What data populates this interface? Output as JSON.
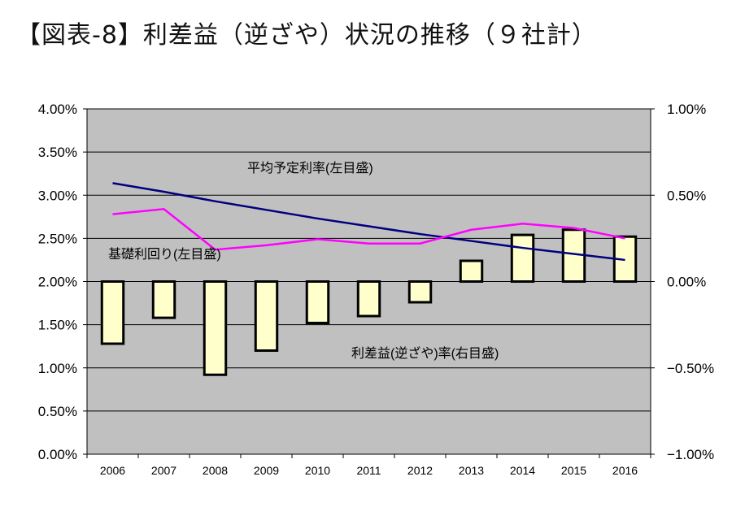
{
  "title": "【図表‐8】利差益（逆ざや）状況の推移（９社計）",
  "chart_data": {
    "type": "bar+line",
    "categories": [
      "2006",
      "2007",
      "2008",
      "2009",
      "2010",
      "2011",
      "2012",
      "2013",
      "2014",
      "2015",
      "2016"
    ],
    "left_axis": {
      "ticks": [
        "0.00%",
        "0.50%",
        "1.00%",
        "1.50%",
        "2.00%",
        "2.50%",
        "3.00%",
        "3.50%",
        "4.00%"
      ],
      "ylim": [
        0,
        4
      ]
    },
    "right_axis": {
      "ticks": [
        "−1.00%",
        "−0.50%",
        "0.00%",
        "0.50%",
        "1.00%"
      ],
      "ylim": [
        -1,
        1
      ]
    },
    "series": [
      {
        "name": "平均予定利率(左目盛)",
        "axis": "left",
        "type": "line",
        "color": "#000080",
        "values": [
          3.14,
          3.04,
          2.93,
          2.83,
          2.73,
          2.64,
          2.55,
          2.47,
          2.39,
          2.32,
          2.25
        ]
      },
      {
        "name": "基礎利回り(左目盛)",
        "axis": "left",
        "type": "line",
        "color": "#ff00ff",
        "values": [
          2.78,
          2.84,
          2.37,
          2.42,
          2.49,
          2.44,
          2.44,
          2.6,
          2.67,
          2.62,
          2.5
        ]
      },
      {
        "name": "利差益(逆ざや)率(右目盛)",
        "axis": "right",
        "type": "bar",
        "color": "#ffffcc",
        "values": [
          -0.36,
          -0.21,
          -0.54,
          -0.4,
          -0.24,
          -0.2,
          -0.12,
          0.12,
          0.27,
          0.3,
          0.26
        ]
      }
    ],
    "labels": {
      "avg_rate": "平均予定利率(左目盛)",
      "base_yield": "基礎利回り(左目盛)",
      "spread": "利差益(逆ざや)率(右目盛)"
    },
    "colors": {
      "plot_bg": "#c0c0c0",
      "grid": "#000000",
      "bar_fill": "#ffffcc",
      "bar_stroke": "#000000"
    },
    "grid": true
  }
}
